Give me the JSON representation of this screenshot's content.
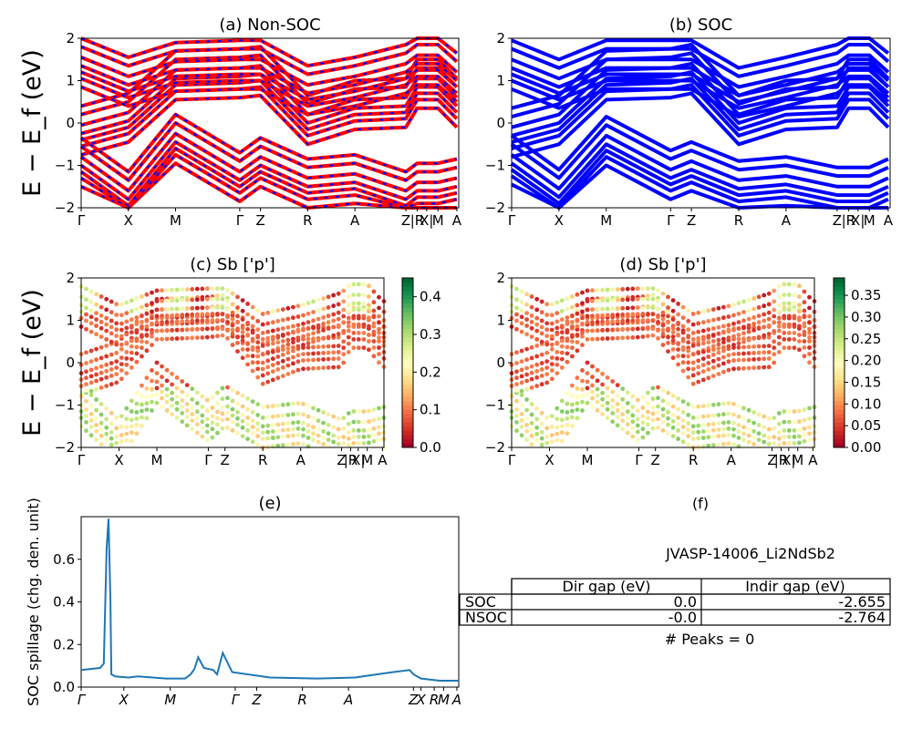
{
  "colors": {
    "nonsoc": "#ff0000",
    "soc": "#0000ff",
    "spillage": "#1f77b4"
  },
  "kpath": [
    "Γ",
    "X",
    "M",
    "Γ",
    "Z",
    "R",
    "A",
    "Z",
    "|R",
    "X|",
    "M",
    "A"
  ],
  "kpath_spillage": [
    "Γ",
    "X",
    "M",
    "Γ",
    "Z",
    "R",
    "A",
    "Z",
    "X",
    "R",
    "M",
    "A"
  ],
  "chart_data": [
    {
      "panel": "a",
      "type": "line",
      "title": "(a) Non-SOC",
      "ylabel": "E − E_f (eV)",
      "ylim": [
        -2,
        2
      ],
      "yticks": [
        "−2",
        "−1",
        "0",
        "1",
        "2"
      ],
      "series": [
        {
          "values": [
            -0.25,
            0.05,
            1.05,
            1.1,
            1.15,
            0.0,
            0.35,
            0.4,
            0.85,
            0.85,
            0.85,
            0.4
          ]
        },
        {
          "values": [
            1.35,
            0.9,
            1.25,
            1.3,
            1.3,
            0.7,
            0.9,
            1.2,
            1.4,
            1.4,
            1.4,
            1.0
          ]
        },
        {
          "values": [
            -1.0,
            -1.8,
            -0.45,
            -1.35,
            -1.0,
            -1.5,
            -1.4,
            -1.8,
            -1.6,
            -1.6,
            -1.6,
            -1.5
          ]
        }
      ]
    },
    {
      "panel": "b",
      "type": "line",
      "title": "(b) SOC",
      "ylim": [
        -2,
        2
      ],
      "yticks": [
        "−2",
        "−1",
        "0",
        "1",
        "2"
      ],
      "series": [
        {
          "values": [
            -0.3,
            0.0,
            1.05,
            1.1,
            1.2,
            0.0,
            0.35,
            0.4,
            0.85,
            0.85,
            0.85,
            0.4
          ]
        },
        {
          "values": [
            1.3,
            0.85,
            1.3,
            1.3,
            1.3,
            0.65,
            0.9,
            1.2,
            1.4,
            1.4,
            1.4,
            1.0
          ]
        },
        {
          "values": [
            -0.95,
            -1.75,
            -0.5,
            -1.3,
            -1.1,
            -1.55,
            -1.45,
            -1.7,
            -1.7,
            -1.7,
            -1.7,
            -1.5
          ]
        }
      ]
    },
    {
      "panel": "c",
      "type": "scatter",
      "title": "(c)  Sb ['p']",
      "ylabel": "E − E_f (eV)",
      "ylim": [
        -2,
        2
      ],
      "yticks": [
        "−2",
        "−1",
        "0",
        "1",
        "2"
      ],
      "colorbar": {
        "min": 0.0,
        "max": 0.45,
        "ticks": [
          "0.0",
          "0.1",
          "0.2",
          "0.3",
          "0.4"
        ],
        "colormap": "RdYlGn"
      }
    },
    {
      "panel": "d",
      "type": "scatter",
      "title": "(d) Sb ['p']",
      "ylim": [
        -2,
        2
      ],
      "yticks": [
        "−2",
        "−1",
        "0",
        "1",
        "2"
      ],
      "colorbar": {
        "min": 0.0,
        "max": 0.39,
        "ticks": [
          "0.00",
          "0.05",
          "0.10",
          "0.15",
          "0.20",
          "0.25",
          "0.30",
          "0.35"
        ],
        "colormap": "RdYlGn"
      }
    },
    {
      "panel": "e",
      "type": "line",
      "title": "(e)",
      "ylabel": "SOC spillage (chg. den. unit)",
      "ylim": [
        0,
        0.8
      ],
      "yticks": [
        "0.0",
        "0.2",
        "0.4",
        "0.6"
      ],
      "x": [
        0,
        0.1,
        0.12,
        0.135,
        0.145,
        0.155,
        0.16,
        0.18,
        0.25,
        0.3,
        0.45,
        0.55,
        0.58,
        0.6,
        0.62,
        0.65,
        0.7,
        0.72,
        0.75,
        0.8,
        1.0,
        1.25,
        1.45,
        1.65,
        1.74,
        1.76,
        1.8,
        1.9,
        2.0
      ],
      "values": [
        0.08,
        0.09,
        0.11,
        0.65,
        0.79,
        0.4,
        0.06,
        0.05,
        0.045,
        0.05,
        0.04,
        0.04,
        0.06,
        0.085,
        0.14,
        0.09,
        0.08,
        0.06,
        0.16,
        0.07,
        0.045,
        0.04,
        0.045,
        0.07,
        0.08,
        0.06,
        0.04,
        0.03,
        0.03
      ]
    }
  ],
  "panel_f": {
    "title": "(f)",
    "material": "JVASP-14006_Li2NdSb2",
    "table": {
      "headers": [
        "Dir gap (eV)",
        "Indir gap (eV)"
      ],
      "rows": [
        {
          "label": "SOC",
          "dir": "0.0",
          "indir": "-2.655"
        },
        {
          "label": "NSOC",
          "dir": "-0.0",
          "indir": "-2.764"
        }
      ]
    },
    "peaks": "# Peaks = 0"
  }
}
